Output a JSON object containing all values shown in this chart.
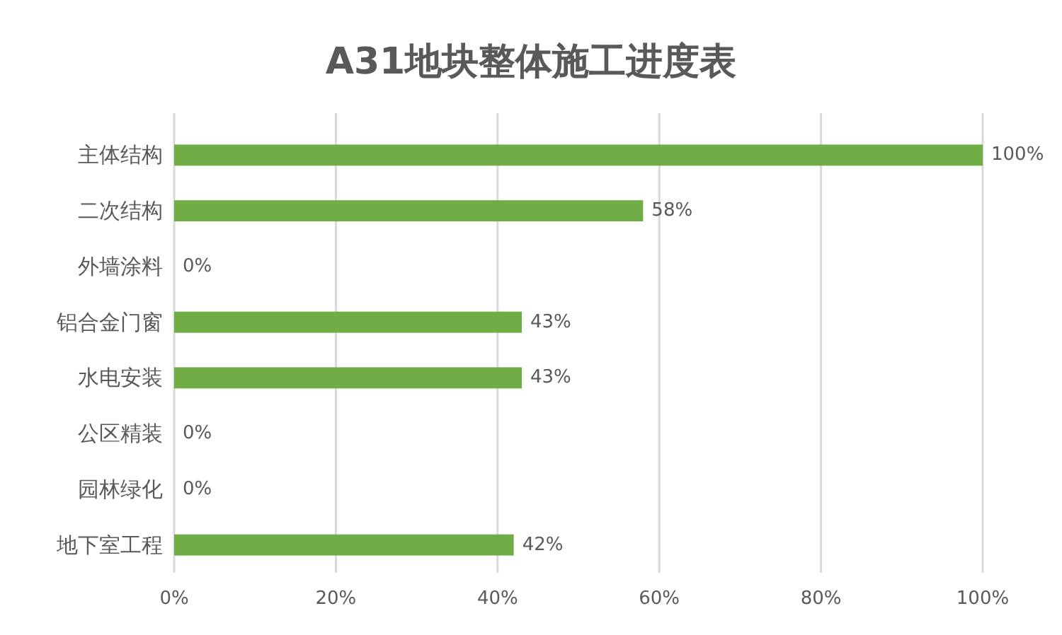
{
  "chart_data": {
    "type": "bar",
    "orientation": "horizontal",
    "title": "A31地块整体施工进度表",
    "categories": [
      "主体结构",
      "二次结构",
      "外墙涂料",
      "铝合金门窗",
      "水电安装",
      "公区精装",
      "园林绿化",
      "地下室工程"
    ],
    "values": [
      100,
      58,
      0,
      43,
      43,
      0,
      0,
      42
    ],
    "value_labels": [
      "100%",
      "58%",
      "0%",
      "43%",
      "43%",
      "0%",
      "0%",
      "42%"
    ],
    "color": "#70ad47",
    "xlim": [
      0,
      100
    ],
    "xticks": [
      {
        "value": 0,
        "label": "0%"
      },
      {
        "value": 20,
        "label": "20%"
      },
      {
        "value": 40,
        "label": "40%"
      },
      {
        "value": 60,
        "label": "60%"
      },
      {
        "value": 80,
        "label": "80%"
      },
      {
        "value": 100,
        "label": "100%"
      }
    ],
    "grid": "x"
  }
}
